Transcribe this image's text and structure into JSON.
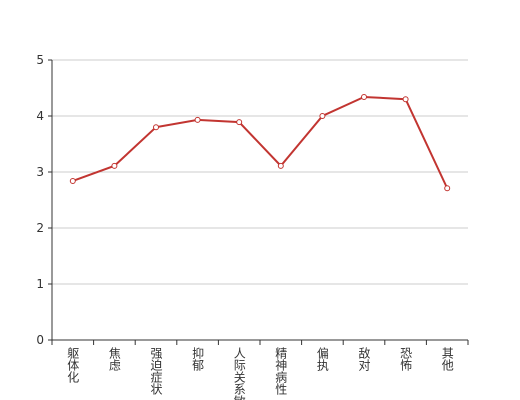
{
  "chart_data": {
    "type": "line",
    "categories": [
      "躯体化",
      "焦虑",
      "强迫症状",
      "抑郁",
      "人际关系敏感",
      "精神病性",
      "偏执",
      "敌对",
      "恐怖",
      "其他"
    ],
    "values": [
      2.84,
      3.11,
      3.8,
      3.93,
      3.89,
      3.11,
      4.0,
      4.34,
      4.3,
      2.71
    ],
    "color": "#c23531",
    "ylim": [
      0,
      5
    ],
    "yticks": [
      0,
      1,
      2,
      3,
      4,
      5
    ],
    "grid": true
  }
}
